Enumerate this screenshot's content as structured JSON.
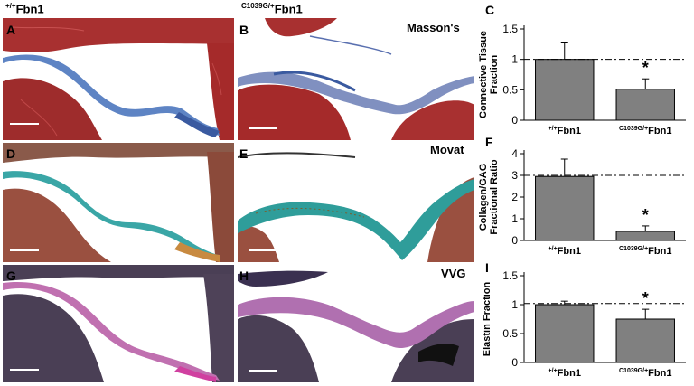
{
  "headers": {
    "wt": {
      "sup": "+/+",
      "main": "Fbn1"
    },
    "mut": {
      "sup": "C1039G/+",
      "main": "Fbn1"
    }
  },
  "panels": {
    "A": "A",
    "B": "B",
    "C": "C",
    "D": "D",
    "E": "E",
    "F": "F",
    "G": "G",
    "H": "H",
    "I": "I"
  },
  "stains": {
    "masson": "Masson's",
    "movat": "Movat",
    "vvg": "VVG"
  },
  "colors": {
    "bar": "#808080",
    "masson_muscle": "#a83030",
    "masson_collagen": "#4a6fb0",
    "movat_muscle": "#9a5040",
    "movat_gag": "#3aa6a6",
    "vvg_muscle": "#4a3f55",
    "vvg_elastin": "#c070b0"
  },
  "chart_data": [
    {
      "type": "bar",
      "panel": "C",
      "categories": [
        {
          "sup": "+/+",
          "main": "Fbn1"
        },
        {
          "sup": "C1039G/+",
          "main": "Fbn1"
        }
      ],
      "values": [
        1.0,
        0.51
      ],
      "errors": [
        0.27,
        0.17
      ],
      "significance": [
        "",
        "*"
      ],
      "reference_line": 1.0,
      "ylabel": [
        "Connective Tissue",
        "Fraction"
      ],
      "ylim": [
        0,
        1.5
      ],
      "yticks": [
        "0",
        "0.5",
        "1",
        "1.5"
      ]
    },
    {
      "type": "bar",
      "panel": "F",
      "categories": [
        {
          "sup": "+/+",
          "main": "Fbn1"
        },
        {
          "sup": "C1039G/+",
          "main": "Fbn1"
        }
      ],
      "values": [
        2.95,
        0.42
      ],
      "errors": [
        0.8,
        0.25
      ],
      "significance": [
        "",
        "*"
      ],
      "reference_line": 3.0,
      "ylabel": [
        "Collagen/GAG",
        "Fractional Ratio"
      ],
      "ylim": [
        0,
        4
      ],
      "yticks": [
        "0",
        "1",
        "2",
        "3",
        "4"
      ]
    },
    {
      "type": "bar",
      "panel": "I",
      "categories": [
        {
          "sup": "+/+",
          "main": "Fbn1"
        },
        {
          "sup": "C1039G/+",
          "main": "Fbn1"
        }
      ],
      "values": [
        1.0,
        0.75
      ],
      "errors": [
        0.06,
        0.17
      ],
      "significance": [
        "",
        "*"
      ],
      "reference_line": 1.02,
      "ylabel": [
        "Elastin Fraction"
      ],
      "ylim": [
        0,
        1.5
      ],
      "yticks": [
        "0",
        "0.5",
        "1",
        "1.5"
      ]
    }
  ]
}
